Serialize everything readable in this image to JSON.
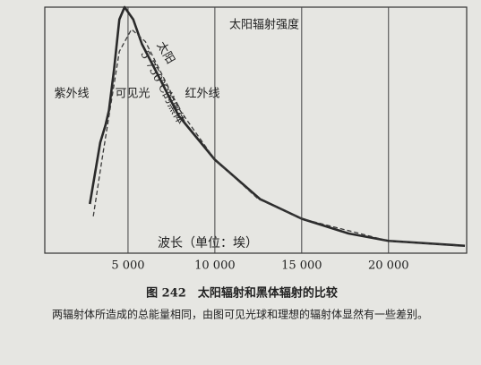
{
  "chart_data": {
    "type": "line",
    "title": "图 242　太阳辐射和黑体辐射的比较",
    "note": "两辐射体所造成的总能量相同，由图可见光球和理想的辐射体显然有一些差别。",
    "y_label": "太阳辐射强度",
    "x_label": "波长（单位：埃）",
    "annotations": [
      "紫外线",
      "可见光",
      "红外线",
      "太阳",
      "5 750℃的黑体"
    ],
    "xlim": [
      0,
      24500
    ],
    "ylim": [
      0,
      100
    ],
    "xticks": [
      {
        "value": 5000,
        "label": "5 000"
      },
      {
        "value": 10000,
        "label": "10 000"
      },
      {
        "value": 15000,
        "label": "15 000"
      },
      {
        "value": 20000,
        "label": "20 000"
      }
    ],
    "grid": true,
    "series": [
      {
        "name": "太阳",
        "color": "#2a2a2a",
        "dash": false,
        "x": [
          2800,
          3400,
          3700,
          3900,
          4200,
          4500,
          4800,
          5300,
          5800,
          6900,
          7900,
          10000,
          12600,
          15000,
          17700,
          20000,
          24400
        ],
        "values": [
          20,
          45,
          52,
          58,
          75,
          95,
          100,
          95,
          85,
          70,
          56,
          38,
          22,
          14,
          8,
          5,
          3
        ]
      },
      {
        "name": "5 750℃的黑体",
        "color": "#3a3a3a",
        "dash": true,
        "x": [
          3000,
          3500,
          4000,
          4500,
          5200,
          6000,
          7000,
          8000,
          10000,
          12500,
          15000,
          20000,
          24000
        ],
        "values": [
          15,
          38,
          60,
          82,
          91,
          86,
          72,
          58,
          38,
          22,
          14,
          5,
          3
        ]
      }
    ]
  }
}
